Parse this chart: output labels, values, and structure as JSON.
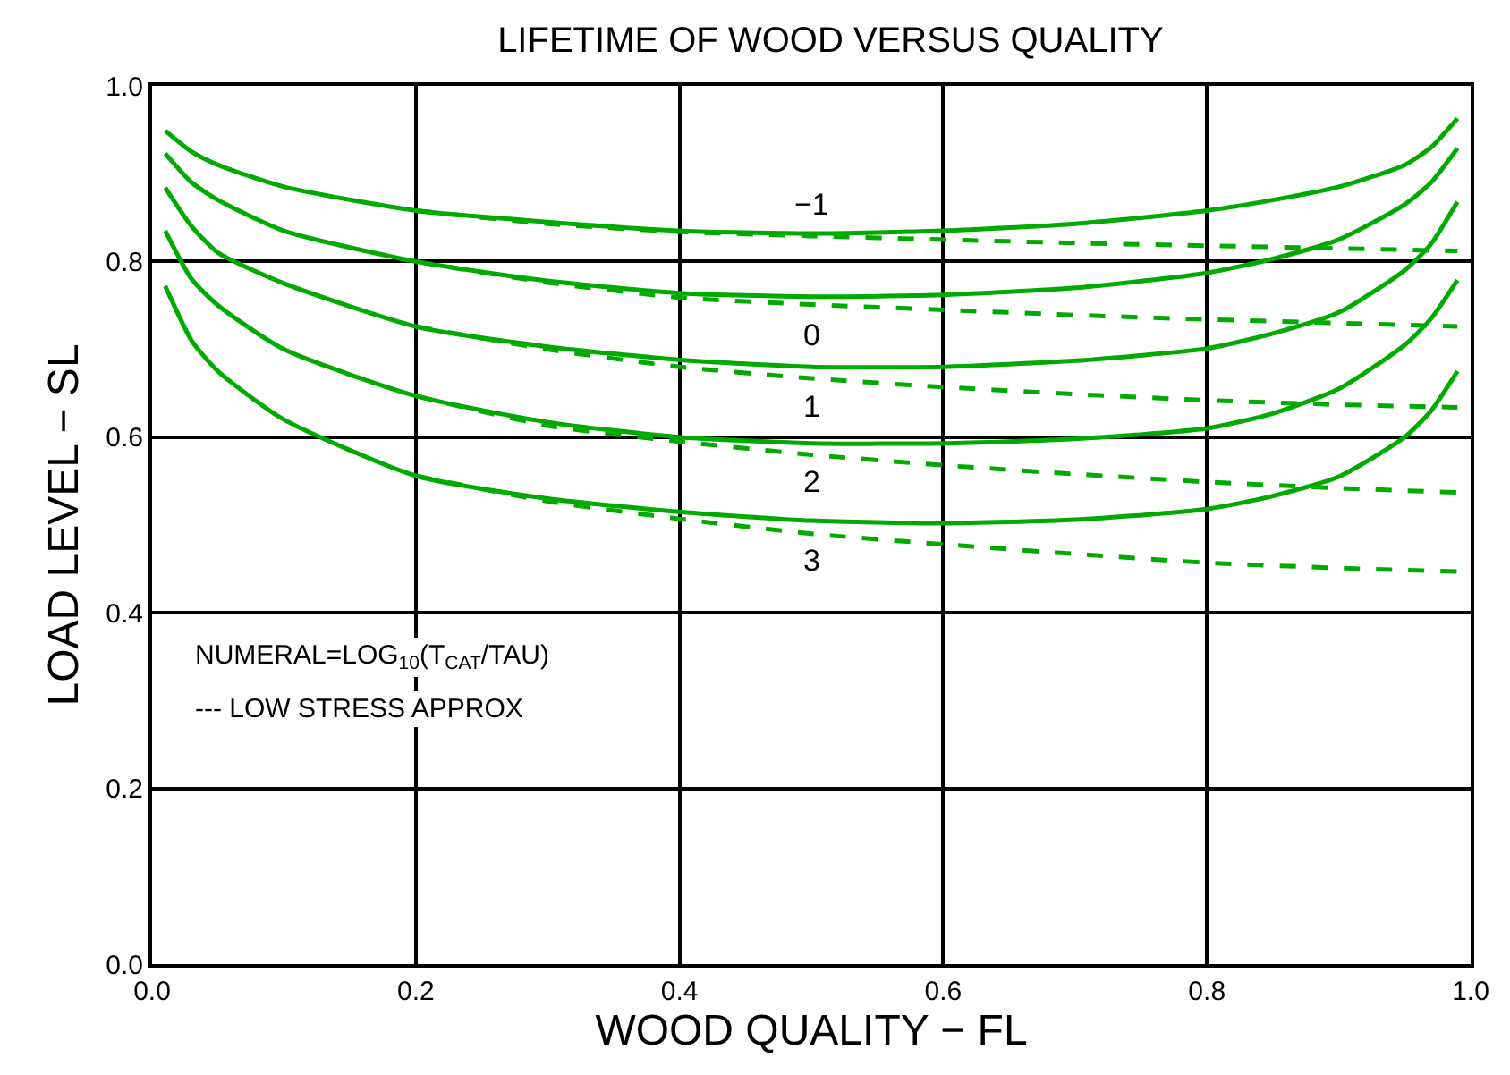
{
  "chart_data": {
    "type": "line",
    "title": "LIFETIME OF WOOD VERSUS QUALITY",
    "xlabel": "WOOD QUALITY − FL",
    "ylabel": "LOAD LEVEL − SL",
    "xlim": [
      0,
      1
    ],
    "ylim": [
      0,
      1
    ],
    "xticks": [
      {
        "value": 0,
        "label": "0.0"
      },
      0.2,
      0.4,
      0.6,
      0.8,
      {
        "value": 1,
        "label": "1.0"
      }
    ],
    "yticks": [
      {
        "value": 0,
        "label": "0.0"
      },
      0.2,
      0.4,
      0.6,
      0.8,
      {
        "value": 1,
        "label": "1.0"
      }
    ],
    "grid": true,
    "legend": false,
    "series": [
      {
        "name": "−1",
        "color": "#00aa00",
        "line_style": "solid",
        "x": [
          0.01,
          0.03,
          0.05,
          0.1,
          0.2,
          0.3,
          0.4,
          0.5,
          0.6,
          0.7,
          0.8,
          0.85,
          0.9,
          0.95,
          0.97,
          0.99
        ],
        "values": [
          0.949,
          0.925,
          0.91,
          0.885,
          0.858,
          0.845,
          0.835,
          0.832,
          0.835,
          0.843,
          0.858,
          0.87,
          0.885,
          0.91,
          0.93,
          0.963
        ]
      },
      {
        "name": "0",
        "color": "#00aa00",
        "line_style": "solid",
        "x": [
          0.01,
          0.03,
          0.05,
          0.1,
          0.2,
          0.3,
          0.4,
          0.5,
          0.6,
          0.7,
          0.8,
          0.85,
          0.9,
          0.95,
          0.97,
          0.99
        ],
        "values": [
          0.923,
          0.89,
          0.87,
          0.835,
          0.8,
          0.778,
          0.764,
          0.76,
          0.762,
          0.77,
          0.787,
          0.803,
          0.825,
          0.865,
          0.89,
          0.929
        ]
      },
      {
        "name": "1",
        "color": "#00aa00",
        "line_style": "solid",
        "x": [
          0.01,
          0.03,
          0.05,
          0.1,
          0.2,
          0.3,
          0.4,
          0.5,
          0.6,
          0.7,
          0.8,
          0.85,
          0.9,
          0.95,
          0.97,
          0.99
        ],
        "values": [
          0.884,
          0.84,
          0.81,
          0.775,
          0.726,
          0.703,
          0.688,
          0.68,
          0.68,
          0.687,
          0.701,
          0.718,
          0.742,
          0.79,
          0.82,
          0.868
        ]
      },
      {
        "name": "2",
        "color": "#00aa00",
        "line_style": "solid",
        "x": [
          0.01,
          0.03,
          0.05,
          0.1,
          0.2,
          0.3,
          0.4,
          0.5,
          0.6,
          0.7,
          0.8,
          0.85,
          0.9,
          0.95,
          0.97,
          0.99
        ],
        "values": [
          0.835,
          0.78,
          0.75,
          0.7,
          0.647,
          0.617,
          0.6,
          0.593,
          0.593,
          0.598,
          0.61,
          0.627,
          0.655,
          0.705,
          0.735,
          0.779
        ]
      },
      {
        "name": "3",
        "color": "#00aa00",
        "line_style": "solid",
        "x": [
          0.01,
          0.03,
          0.05,
          0.1,
          0.2,
          0.3,
          0.4,
          0.5,
          0.6,
          0.7,
          0.8,
          0.85,
          0.9,
          0.95,
          0.97,
          0.99
        ],
        "values": [
          0.772,
          0.71,
          0.675,
          0.62,
          0.556,
          0.53,
          0.515,
          0.505,
          0.502,
          0.506,
          0.518,
          0.533,
          0.555,
          0.6,
          0.63,
          0.675
        ]
      },
      {
        "color": "#00aa00",
        "line_style": "dashed",
        "x": [
          0.2,
          0.3,
          0.4,
          0.5,
          0.6,
          0.7,
          0.8,
          0.9,
          0.99
        ],
        "values": [
          0.858,
          0.843,
          0.834,
          0.829,
          0.825,
          0.821,
          0.818,
          0.815,
          0.812
        ]
      },
      {
        "color": "#00aa00",
        "line_style": "dashed",
        "x": [
          0.2,
          0.3,
          0.4,
          0.5,
          0.6,
          0.7,
          0.8,
          0.9,
          0.99
        ],
        "values": [
          0.8,
          0.776,
          0.759,
          0.751,
          0.745,
          0.739,
          0.734,
          0.73,
          0.726
        ]
      },
      {
        "color": "#00aa00",
        "line_style": "dashed",
        "x": [
          0.2,
          0.3,
          0.4,
          0.5,
          0.6,
          0.7,
          0.8,
          0.9,
          0.99
        ],
        "values": [
          0.726,
          0.7,
          0.68,
          0.667,
          0.657,
          0.649,
          0.642,
          0.637,
          0.634
        ]
      },
      {
        "color": "#00aa00",
        "line_style": "dashed",
        "x": [
          0.2,
          0.3,
          0.4,
          0.5,
          0.6,
          0.7,
          0.8,
          0.9,
          0.99
        ],
        "values": [
          0.647,
          0.613,
          0.595,
          0.58,
          0.568,
          0.558,
          0.549,
          0.542,
          0.537
        ]
      },
      {
        "color": "#00aa00",
        "line_style": "dashed",
        "x": [
          0.2,
          0.3,
          0.4,
          0.5,
          0.6,
          0.7,
          0.8,
          0.9,
          0.99
        ],
        "values": [
          0.556,
          0.527,
          0.507,
          0.49,
          0.478,
          0.467,
          0.457,
          0.451,
          0.447
        ]
      }
    ],
    "annotations": [
      "NUMERAL=LOG$_{10}$(T$_{CAT}$/TAU)",
      "--- LOW STRESS APPROX"
    ]
  }
}
